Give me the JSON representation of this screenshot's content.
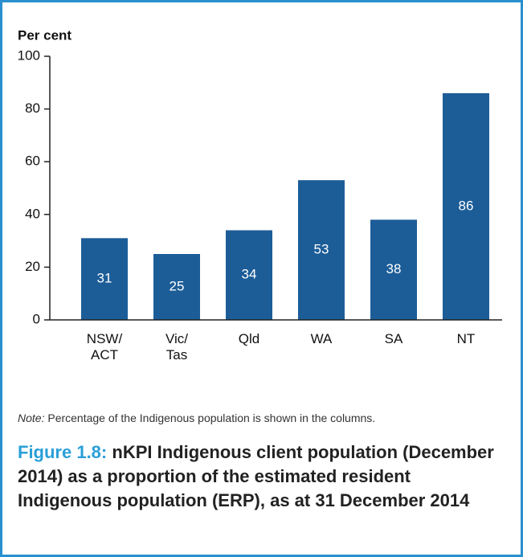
{
  "chart_data": {
    "type": "bar",
    "y_axis_label": "Per cent",
    "categories": [
      "NSW/\nACT",
      "Vic/\nTas",
      "Qld",
      "WA",
      "SA",
      "NT"
    ],
    "values": [
      31,
      25,
      34,
      53,
      38,
      86
    ],
    "color": "#1c5d98",
    "ylim": [
      0,
      100
    ],
    "yticks": [
      0,
      20,
      40,
      60,
      80,
      100
    ],
    "grid": false,
    "note_label": "Note:",
    "note": "Percentage of the Indigenous population is shown in the columns.",
    "figure_number": "Figure 1.8:",
    "title": "nKPI Indigenous client population (December 2014) as a proportion of the estimated resident Indigenous population (ERP), as at 31 December 2014"
  }
}
